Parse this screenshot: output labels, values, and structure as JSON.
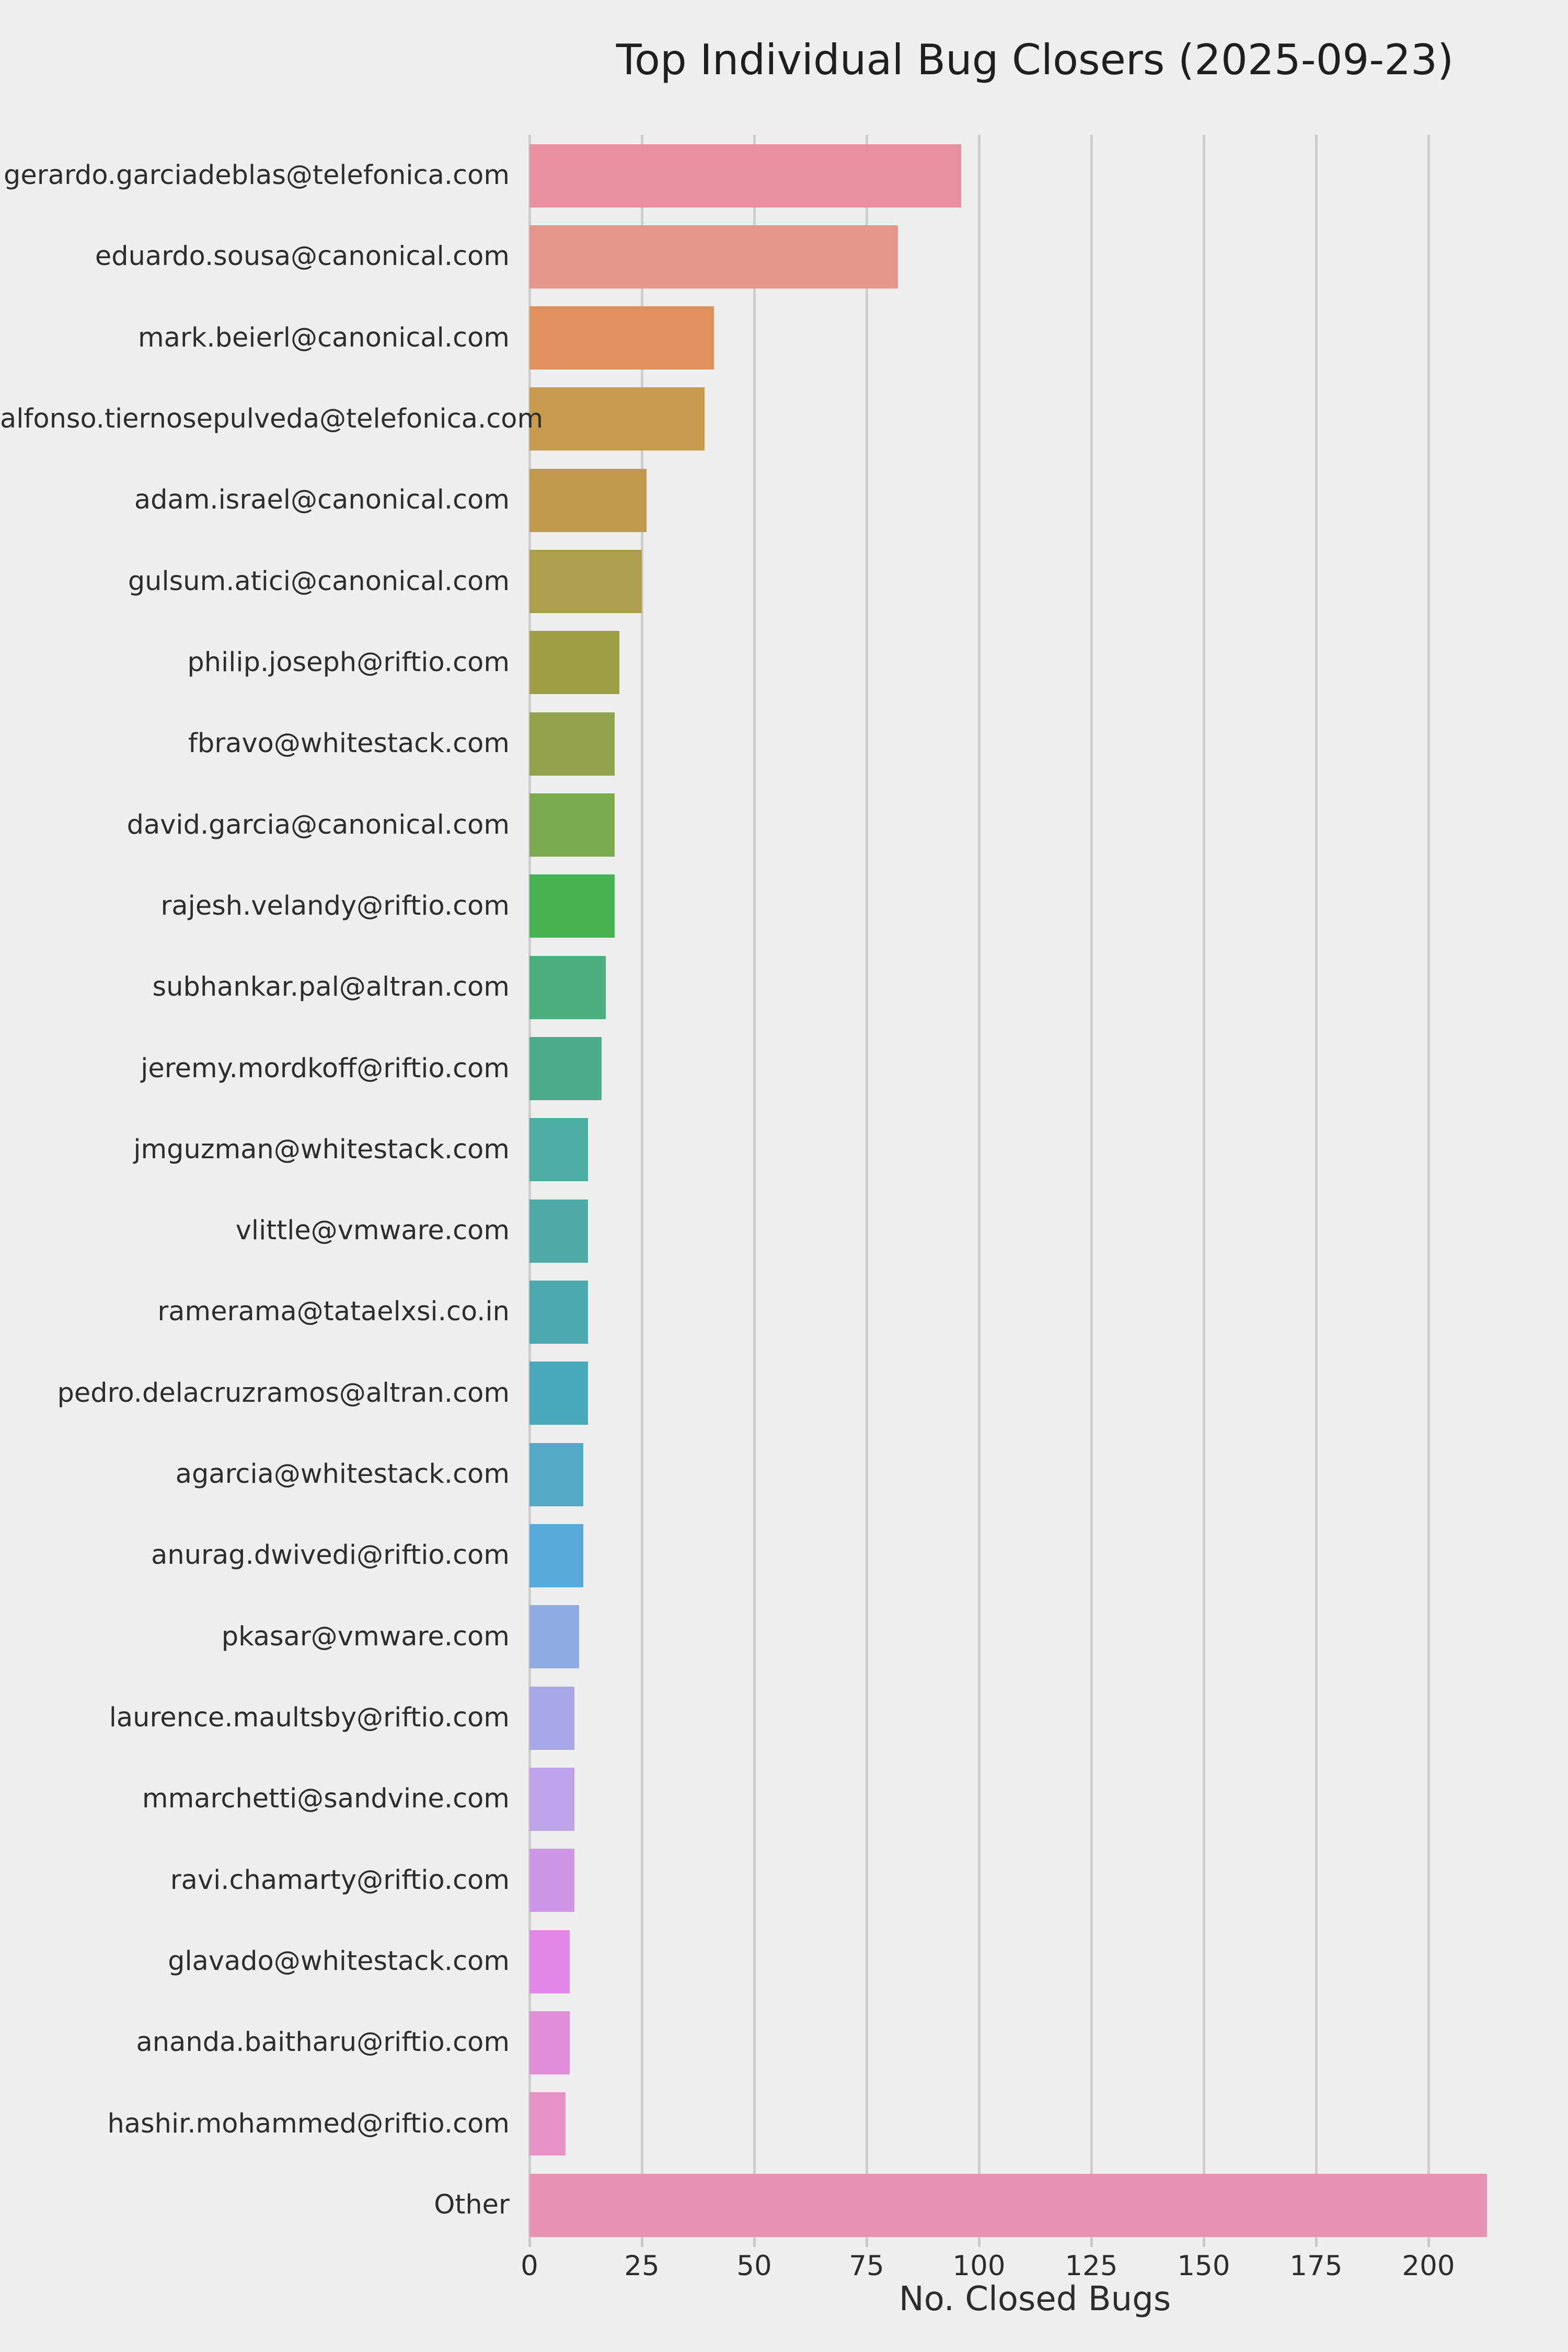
{
  "chart_data": {
    "type": "bar",
    "orientation": "horizontal",
    "title": "Top Individual Bug Closers (2025-09-23)",
    "xlabel": "No. Closed Bugs",
    "ylabel": "",
    "xlim": [
      0,
      219
    ],
    "xticks": [
      0,
      25,
      50,
      75,
      100,
      125,
      150,
      175,
      200
    ],
    "grid": true,
    "legend": false,
    "categories": [
      "gerardo.garciadeblas@telefonica.com",
      "eduardo.sousa@canonical.com",
      "mark.beierl@canonical.com",
      "alfonso.tiernosepulveda@telefonica.com",
      "adam.israel@canonical.com",
      "gulsum.atici@canonical.com",
      "philip.joseph@riftio.com",
      "fbravo@whitestack.com",
      "david.garcia@canonical.com",
      "rajesh.velandy@riftio.com",
      "subhankar.pal@altran.com",
      "jeremy.mordkoff@riftio.com",
      "jmguzman@whitestack.com",
      "vlittle@vmware.com",
      "ramerama@tataelxsi.co.in",
      "pedro.delacruzramos@altran.com",
      "agarcia@whitestack.com",
      "anurag.dwivedi@riftio.com",
      "pkasar@vmware.com",
      "laurence.maultsby@riftio.com",
      "mmarchetti@sandvine.com",
      "ravi.chamarty@riftio.com",
      "glavado@whitestack.com",
      "ananda.baitharu@riftio.com",
      "hashir.mohammed@riftio.com",
      "Other"
    ],
    "values": [
      96,
      82,
      41,
      39,
      26,
      25,
      20,
      19,
      19,
      19,
      17,
      16,
      13,
      13,
      13,
      13,
      12,
      12,
      11,
      10,
      10,
      10,
      9,
      9,
      8,
      213
    ],
    "bar_colors": [
      "#e8919e",
      "#e5948b",
      "#de915c",
      "#c89a4c",
      "#bf9a4d",
      "#ac9f4b",
      "#9f9e45",
      "#90a34b",
      "#7aaa4d",
      "#45b14f",
      "#4bae7e",
      "#4ead89",
      "#4cada1",
      "#4eaaa9",
      "#4aa9b1",
      "#49a9ba",
      "#53aac7",
      "#57a9dc",
      "#90abe3",
      "#aaa7e8",
      "#bfa3ea",
      "#cd97e5",
      "#e187e8",
      "#e28dd8",
      "#e593c4",
      "#ea92b4"
    ]
  },
  "style": {
    "background": "#efefef",
    "grid_color": "#cdcdcd",
    "text_color": "#2d2d2d"
  }
}
